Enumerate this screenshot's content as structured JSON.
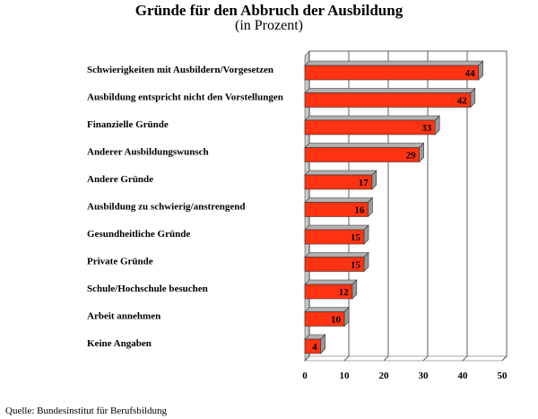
{
  "chart_data": {
    "type": "bar",
    "orientation": "horizontal",
    "title": "Gründe für den Abbruch der Ausbildung",
    "subtitle": "(in Prozent)",
    "categories": [
      "Schwierigkeiten mit Ausbildern/Vorgesetzen",
      "Ausbildung entspricht nicht den Vorstellungen",
      "Finanzielle Gründe",
      "Anderer Ausbildungswunsch",
      "Andere Gründe",
      "Ausbildung zu schwierig/anstrengend",
      "Gesundheitliche Gründe",
      "Private Gründe",
      "Schule/Hochschule besuchen",
      "Arbeit annehmen",
      "Keine Angaben"
    ],
    "values": [
      44,
      42,
      33,
      29,
      17,
      16,
      15,
      15,
      12,
      10,
      4
    ],
    "xlim": [
      0,
      50
    ],
    "xticks": [
      "0",
      "10",
      "20",
      "30",
      "40",
      "50"
    ],
    "grid": true,
    "colors": {
      "bar": "#ff3311",
      "bar_side": "#b0b0b0",
      "wall": "#c8c8c8"
    }
  },
  "source": "Quelle: Bundesinstitut für Berufsbildung"
}
